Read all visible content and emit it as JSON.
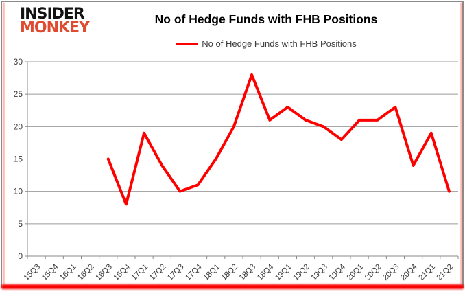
{
  "brand": {
    "line1": "INSIDER",
    "line2": "MONKEY"
  },
  "header": {
    "title": "No of Hedge Funds with FHB Positions"
  },
  "legend": {
    "label": "No of Hedge Funds with FHB Positions"
  },
  "colors": {
    "line": "#ff0000",
    "brand_red": "#e04a31",
    "grid": "#9b9b9b",
    "axis": "#8a8a8a",
    "axis_text": "#3b3b3b",
    "border": "#8a8a8a",
    "bottom_bar": "#f70000"
  },
  "chart_data": {
    "type": "line",
    "title": "No of Hedge Funds with FHB Positions",
    "categories": [
      "15Q3",
      "15Q4",
      "16Q1",
      "16Q2",
      "16Q3",
      "16Q4",
      "17Q1",
      "17Q2",
      "17Q3",
      "17Q4",
      "18Q1",
      "18Q2",
      "18Q3",
      "18Q4",
      "19Q1",
      "19Q2",
      "19Q3",
      "19Q4",
      "20Q1",
      "20Q2",
      "20Q3",
      "20Q4",
      "21Q1",
      "21Q2"
    ],
    "series": [
      {
        "name": "No of Hedge Funds with FHB Positions",
        "color": "#ff0000",
        "values": [
          null,
          null,
          null,
          null,
          15,
          8,
          19,
          14,
          10,
          11,
          15,
          20,
          28,
          21,
          23,
          21,
          20,
          18,
          21,
          21,
          23,
          14,
          19,
          10
        ]
      }
    ],
    "xlabel": "",
    "ylabel": "",
    "ylim": [
      0,
      30
    ],
    "yticks": [
      0,
      5,
      10,
      15,
      20,
      25,
      30
    ],
    "grid": true,
    "legend_position": "top"
  }
}
